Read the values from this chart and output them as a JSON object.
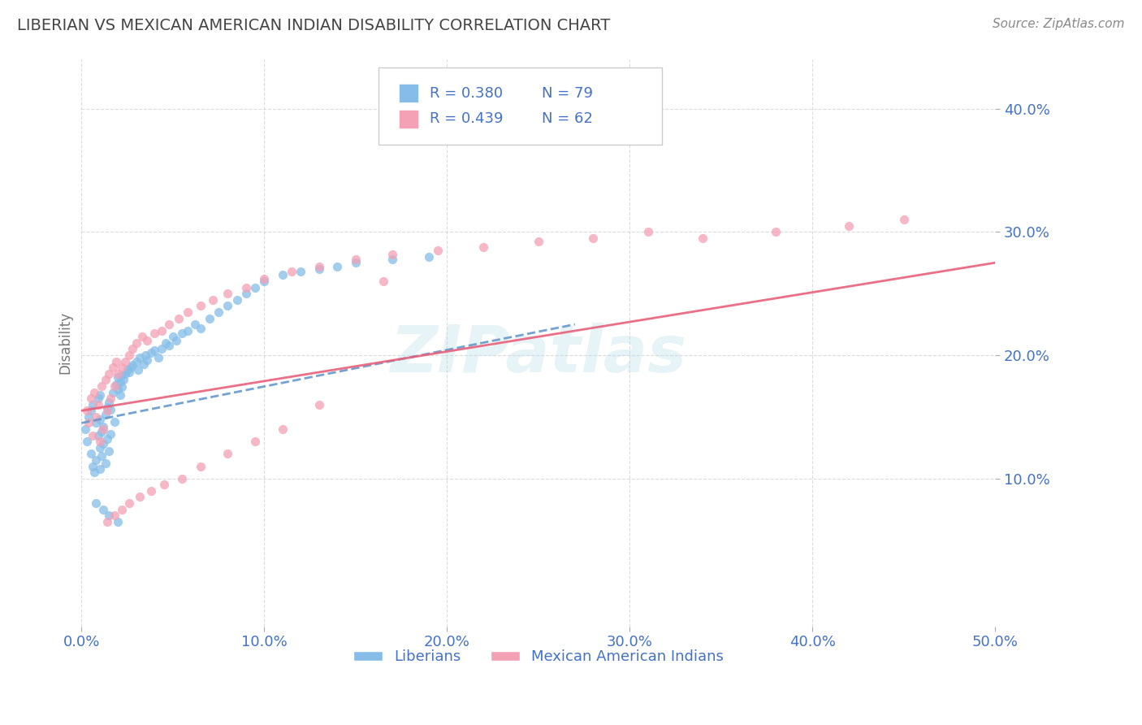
{
  "title": "LIBERIAN VS MEXICAN AMERICAN INDIAN DISABILITY CORRELATION CHART",
  "source": "Source: ZipAtlas.com",
  "ylabel": "Disability",
  "xlim": [
    0.0,
    0.5
  ],
  "ylim": [
    -0.02,
    0.44
  ],
  "xticks": [
    0.0,
    0.1,
    0.2,
    0.3,
    0.4,
    0.5
  ],
  "xtick_labels": [
    "0.0%",
    "10.0%",
    "20.0%",
    "30.0%",
    "40.0%",
    "50.0%"
  ],
  "yticks": [
    0.1,
    0.2,
    0.3,
    0.4
  ],
  "ytick_labels": [
    "10.0%",
    "20.0%",
    "30.0%",
    "40.0%"
  ],
  "grid_color": "#cccccc",
  "background_color": "#ffffff",
  "watermark": "ZIPatlas",
  "legend_R1": "R = 0.380",
  "legend_N1": "N = 79",
  "legend_R2": "R = 0.439",
  "legend_N2": "N = 62",
  "legend_label1": "Liberians",
  "legend_label2": "Mexican American Indians",
  "scatter1_color": "#85bde8",
  "scatter2_color": "#f4a0b5",
  "trendline1_color": "#6699cc",
  "trendline2_color": "#e8607a",
  "title_color": "#444444",
  "tick_label_color": "#4472c4",
  "legend_text_color": "#4472c4",
  "trendline1_x": [
    0.0,
    0.27
  ],
  "trendline1_y": [
    0.145,
    0.225
  ],
  "trendline2_x": [
    0.0,
    0.5
  ],
  "trendline2_y": [
    0.155,
    0.275
  ],
  "scatter1_x": [
    0.002,
    0.003,
    0.004,
    0.005,
    0.005,
    0.006,
    0.006,
    0.007,
    0.008,
    0.008,
    0.009,
    0.009,
    0.01,
    0.01,
    0.01,
    0.01,
    0.011,
    0.011,
    0.012,
    0.012,
    0.013,
    0.013,
    0.014,
    0.014,
    0.015,
    0.015,
    0.016,
    0.016,
    0.017,
    0.018,
    0.019,
    0.02,
    0.02,
    0.021,
    0.021,
    0.022,
    0.022,
    0.023,
    0.024,
    0.025,
    0.026,
    0.027,
    0.028,
    0.03,
    0.031,
    0.032,
    0.034,
    0.035,
    0.036,
    0.038,
    0.04,
    0.042,
    0.044,
    0.046,
    0.048,
    0.05,
    0.052,
    0.055,
    0.058,
    0.062,
    0.065,
    0.07,
    0.075,
    0.08,
    0.085,
    0.09,
    0.095,
    0.1,
    0.11,
    0.12,
    0.13,
    0.14,
    0.15,
    0.17,
    0.19,
    0.008,
    0.012,
    0.015,
    0.02
  ],
  "scatter1_y": [
    0.14,
    0.13,
    0.15,
    0.12,
    0.155,
    0.11,
    0.16,
    0.105,
    0.145,
    0.115,
    0.135,
    0.165,
    0.125,
    0.148,
    0.108,
    0.168,
    0.138,
    0.118,
    0.142,
    0.128,
    0.152,
    0.112,
    0.158,
    0.132,
    0.162,
    0.122,
    0.156,
    0.136,
    0.17,
    0.146,
    0.176,
    0.172,
    0.182,
    0.168,
    0.178,
    0.174,
    0.184,
    0.18,
    0.185,
    0.188,
    0.186,
    0.19,
    0.192,
    0.195,
    0.188,
    0.198,
    0.193,
    0.2,
    0.196,
    0.202,
    0.204,
    0.198,
    0.205,
    0.21,
    0.208,
    0.215,
    0.212,
    0.218,
    0.22,
    0.225,
    0.222,
    0.23,
    0.235,
    0.24,
    0.245,
    0.25,
    0.255,
    0.26,
    0.265,
    0.268,
    0.27,
    0.272,
    0.275,
    0.278,
    0.28,
    0.08,
    0.075,
    0.07,
    0.065
  ],
  "scatter2_x": [
    0.003,
    0.004,
    0.005,
    0.006,
    0.007,
    0.008,
    0.009,
    0.01,
    0.011,
    0.012,
    0.013,
    0.014,
    0.015,
    0.016,
    0.017,
    0.018,
    0.019,
    0.02,
    0.022,
    0.024,
    0.026,
    0.028,
    0.03,
    0.033,
    0.036,
    0.04,
    0.044,
    0.048,
    0.053,
    0.058,
    0.065,
    0.072,
    0.08,
    0.09,
    0.1,
    0.115,
    0.13,
    0.15,
    0.17,
    0.195,
    0.22,
    0.25,
    0.28,
    0.31,
    0.34,
    0.38,
    0.42,
    0.45,
    0.014,
    0.018,
    0.022,
    0.026,
    0.032,
    0.038,
    0.045,
    0.055,
    0.065,
    0.08,
    0.095,
    0.11,
    0.13,
    0.165
  ],
  "scatter2_y": [
    0.155,
    0.145,
    0.165,
    0.135,
    0.17,
    0.15,
    0.16,
    0.13,
    0.175,
    0.14,
    0.18,
    0.155,
    0.185,
    0.165,
    0.19,
    0.175,
    0.195,
    0.185,
    0.19,
    0.195,
    0.2,
    0.205,
    0.21,
    0.215,
    0.212,
    0.218,
    0.22,
    0.225,
    0.23,
    0.235,
    0.24,
    0.245,
    0.25,
    0.255,
    0.262,
    0.268,
    0.272,
    0.278,
    0.282,
    0.285,
    0.288,
    0.292,
    0.295,
    0.3,
    0.295,
    0.3,
    0.305,
    0.31,
    0.065,
    0.07,
    0.075,
    0.08,
    0.085,
    0.09,
    0.095,
    0.1,
    0.11,
    0.12,
    0.13,
    0.14,
    0.16,
    0.26
  ]
}
